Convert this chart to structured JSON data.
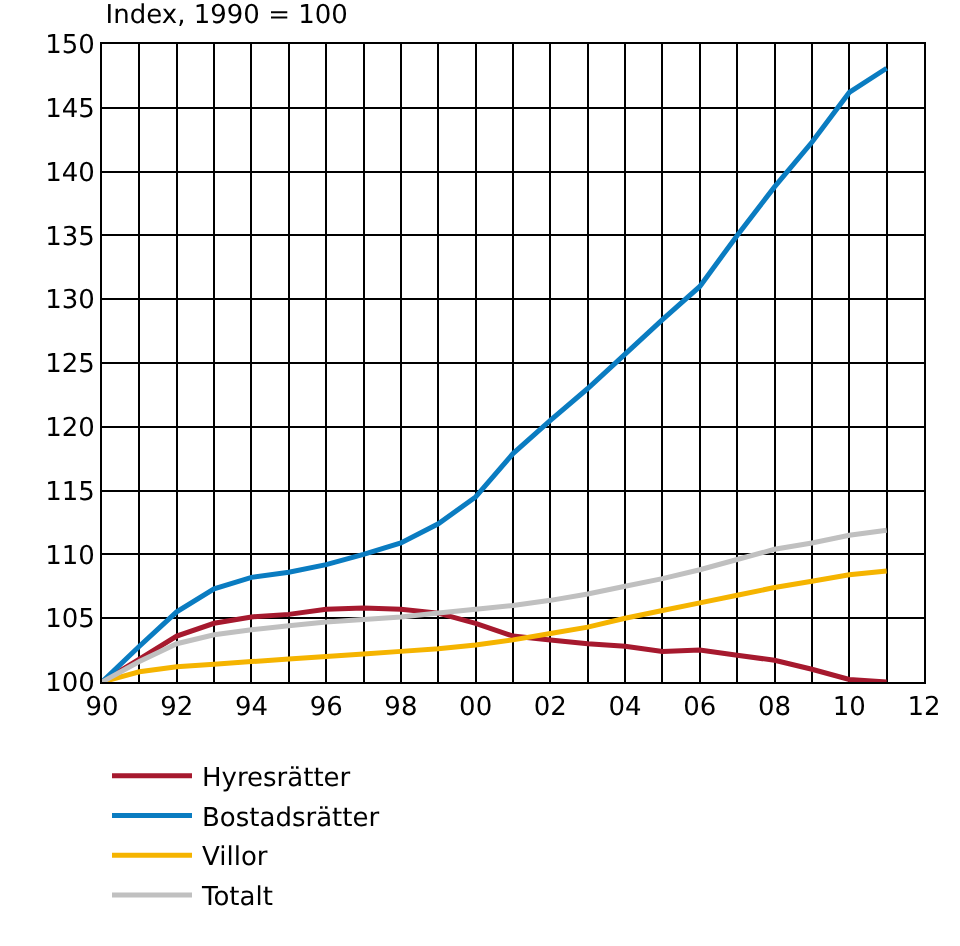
{
  "chart_data": {
    "type": "line",
    "title": "Index, 1990 = 100",
    "x": [
      1990,
      1991,
      1992,
      1993,
      1994,
      1995,
      1996,
      1997,
      1998,
      1999,
      2000,
      2001,
      2002,
      2003,
      2004,
      2005,
      2006,
      2007,
      2008,
      2009,
      2010,
      2011
    ],
    "series": [
      {
        "name": "Hyresrätter",
        "color": "#a6192e",
        "values": [
          100,
          101.8,
          103.6,
          104.6,
          105.1,
          105.3,
          105.7,
          105.8,
          105.7,
          105.4,
          104.6,
          103.6,
          103.3,
          103.0,
          102.8,
          102.4,
          102.5,
          102.1,
          101.7,
          101.0,
          100.2,
          100.0
        ]
      },
      {
        "name": "Bostadsrätter",
        "color": "#0a7cc1",
        "values": [
          100,
          102.8,
          105.5,
          107.3,
          108.2,
          108.6,
          109.2,
          110.0,
          110.9,
          112.4,
          114.5,
          117.9,
          120.5,
          123.0,
          125.7,
          128.4,
          131.0,
          135.0,
          138.8,
          142.3,
          146.2,
          148.1
        ]
      },
      {
        "name": "Villor",
        "color": "#f5b400",
        "values": [
          100,
          100.8,
          101.2,
          101.4,
          101.6,
          101.8,
          102.0,
          102.2,
          102.4,
          102.6,
          102.9,
          103.3,
          103.8,
          104.3,
          105.0,
          105.6,
          106.2,
          106.8,
          107.4,
          107.9,
          108.4,
          108.7
        ]
      },
      {
        "name": "Totalt",
        "color": "#c0c0c0",
        "values": [
          100,
          101.6,
          103.0,
          103.7,
          104.1,
          104.4,
          104.7,
          104.9,
          105.1,
          105.4,
          105.7,
          106.0,
          106.4,
          106.9,
          107.5,
          108.1,
          108.8,
          109.6,
          110.4,
          110.9,
          111.5,
          111.9
        ]
      }
    ],
    "xlim": [
      1990,
      2012
    ],
    "xticks": [
      {
        "value": 1990,
        "label": "90"
      },
      {
        "value": 1991,
        "label": null
      },
      {
        "value": 1992,
        "label": "92"
      },
      {
        "value": 1993,
        "label": null
      },
      {
        "value": 1994,
        "label": "94"
      },
      {
        "value": 1995,
        "label": null
      },
      {
        "value": 1996,
        "label": "96"
      },
      {
        "value": 1997,
        "label": null
      },
      {
        "value": 1998,
        "label": "98"
      },
      {
        "value": 1999,
        "label": null
      },
      {
        "value": 2000,
        "label": "00"
      },
      {
        "value": 2001,
        "label": null
      },
      {
        "value": 2002,
        "label": "02"
      },
      {
        "value": 2003,
        "label": null
      },
      {
        "value": 2004,
        "label": "04"
      },
      {
        "value": 2005,
        "label": null
      },
      {
        "value": 2006,
        "label": "06"
      },
      {
        "value": 2007,
        "label": null
      },
      {
        "value": 2008,
        "label": "08"
      },
      {
        "value": 2009,
        "label": null
      },
      {
        "value": 2010,
        "label": "10"
      },
      {
        "value": 2011,
        "label": null
      },
      {
        "value": 2012,
        "label": "12"
      }
    ],
    "ylim": [
      100,
      150
    ],
    "yticks": [
      100,
      105,
      110,
      115,
      120,
      125,
      130,
      135,
      140,
      145,
      150
    ],
    "grid": true,
    "legend": "bottom",
    "marker": "none",
    "line_style": "solid"
  }
}
